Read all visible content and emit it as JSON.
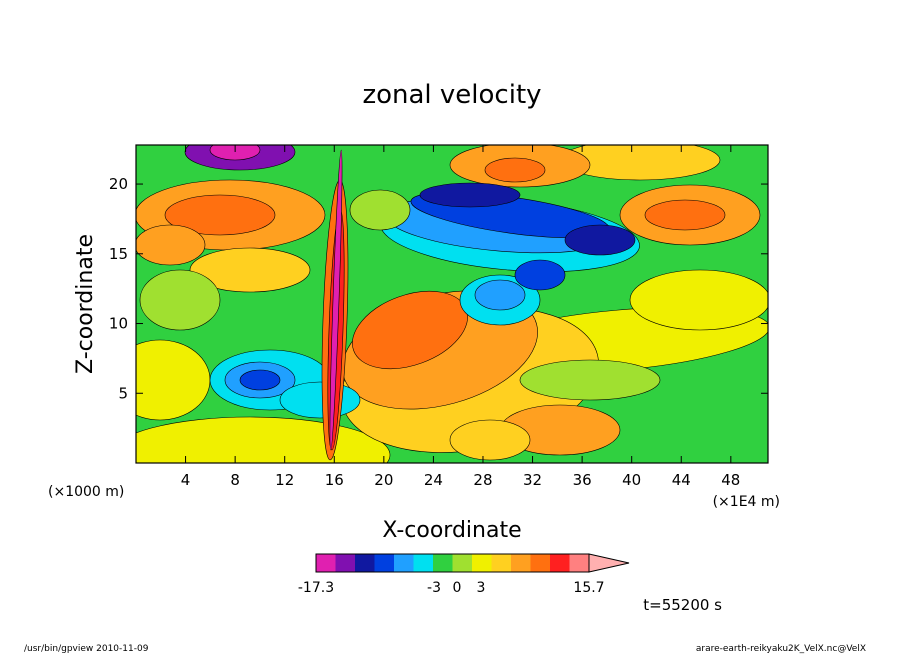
{
  "chart_data": {
    "type": "heatmap",
    "title": "zonal velocity",
    "xlabel": "X-coordinate",
    "ylabel": "Z-coordinate",
    "x_unit_left": "(×1000 m)",
    "x_unit_right": "(×1E4 m)",
    "xticks": [
      4,
      8,
      12,
      16,
      20,
      24,
      28,
      32,
      36,
      40,
      44,
      48
    ],
    "yticks": [
      5,
      10,
      15,
      20
    ],
    "xlim": [
      0,
      51
    ],
    "ylim": [
      0,
      22.8
    ],
    "colorbar": {
      "min_label": "-17.3",
      "max_label": "15.7",
      "mid_labels": [
        "-3",
        "0",
        "3"
      ],
      "colors": [
        "#e020b0",
        "#8010b0",
        "#1018a0",
        "#0040e0",
        "#20a0ff",
        "#00e0f0",
        "#30d040",
        "#a0e030",
        "#f0f000",
        "#ffd020",
        "#ffa020",
        "#ff7010",
        "#ff2020",
        "#ff8080",
        "#ffb0b0"
      ]
    },
    "time_label": "t=55200 s"
  },
  "footer": {
    "left": "/usr/bin/gpview  2010-11-09",
    "right": "arare-earth-reikyaku2K_VelX.nc@VelX"
  }
}
